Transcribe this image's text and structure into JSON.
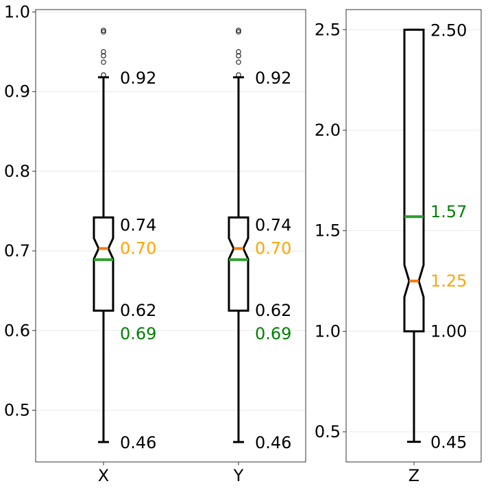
{
  "chart_data": [
    {
      "type": "box",
      "ylim": [
        0.435,
        1.003
      ],
      "yticks": [
        0.5,
        0.6,
        0.7,
        0.8,
        0.9,
        1.0
      ],
      "ytick_labels": [
        "0.5",
        "0.6",
        "0.7",
        "0.8",
        "0.9",
        "1.0"
      ],
      "grid": "horizontal",
      "notched": true,
      "boxes": [
        {
          "category": "X",
          "whisker_low": 0.46,
          "q1": 0.625,
          "median": 0.703,
          "q3": 0.742,
          "whisker_high": 0.918,
          "notch_low": 0.69,
          "notch_high": 0.716,
          "mean": 0.689,
          "outliers": [
            0.921,
            0.937,
            0.945,
            0.95,
            0.975,
            0.977
          ],
          "labels": {
            "whisker_high": "0.92",
            "q3": "0.74",
            "median": "0.70",
            "q1": "0.62",
            "mean": "0.69",
            "whisker_low": "0.46"
          }
        },
        {
          "category": "Y",
          "whisker_low": 0.46,
          "q1": 0.625,
          "median": 0.703,
          "q3": 0.742,
          "whisker_high": 0.918,
          "notch_low": 0.69,
          "notch_high": 0.716,
          "mean": 0.689,
          "outliers": [
            0.921,
            0.937,
            0.945,
            0.95,
            0.975,
            0.977
          ],
          "labels": {
            "whisker_high": "0.92",
            "q3": "0.74",
            "median": "0.70",
            "q1": "0.62",
            "mean": "0.69",
            "whisker_low": "0.46"
          }
        }
      ]
    },
    {
      "type": "box",
      "ylim": [
        0.35,
        2.6
      ],
      "yticks": [
        0.5,
        1.0,
        1.5,
        2.0,
        2.5
      ],
      "ytick_labels": [
        "0.5",
        "1.0",
        "1.5",
        "2.0",
        "2.5"
      ],
      "grid": "horizontal",
      "notched": true,
      "boxes": [
        {
          "category": "Z",
          "whisker_low": 0.45,
          "q1": 1.0,
          "median": 1.25,
          "q3": 2.5,
          "whisker_high": 2.5,
          "notch_low": 1.17,
          "notch_high": 1.33,
          "mean": 1.57,
          "outliers": [],
          "labels": {
            "whisker_high": "2.50",
            "q3": "",
            "median": "1.25",
            "q1": "1.00",
            "mean": "1.57",
            "whisker_low": "0.45"
          }
        }
      ]
    }
  ],
  "colors": {
    "box": "#000000",
    "median": "#f57c00",
    "mean": "#2ca02c",
    "median_label": "#ffa500",
    "mean_label": "#008000",
    "grid": "#e8e8e8",
    "axes": "#333333"
  }
}
